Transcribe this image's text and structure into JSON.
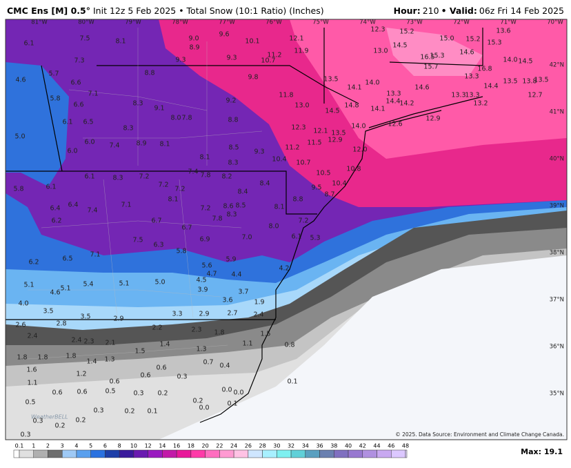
{
  "header": {
    "model": "CMC Ens [M] 0.5°",
    "title": "Init 12z 5 Feb 2025 • Total Snow (10:1 Ratio) (Inches)",
    "hour_label": "Hour:",
    "hour": "210",
    "valid_label": "• Valid:",
    "valid": "06z Fri 14 Feb 2025"
  },
  "map": {
    "lon_labels": [
      "81°W",
      "80°W",
      "79°W",
      "78°W",
      "77°W",
      "76°W",
      "75°W",
      "74°W",
      "73°W",
      "72°W",
      "71°W",
      "70°W"
    ],
    "lat_labels": [
      "42°N",
      "41°N",
      "40°N",
      "39°N",
      "38°N",
      "37°N",
      "36°N",
      "35°N"
    ],
    "points": [
      "6.1",
      "7.5",
      "8.1",
      "7.3",
      "4.6",
      "5.7",
      "6.6",
      "7.1",
      "5.8",
      "6.6",
      "6.5",
      "6.1",
      "5.0",
      "6.0",
      "6.0",
      "7.4",
      "8.3",
      "8.3",
      "9.1",
      "8.8",
      "9.0",
      "8.9",
      "9.6",
      "9.3",
      "9.3",
      "10.1",
      "11.2",
      "10.7",
      "12.1",
      "11.9",
      "9.8",
      "9.2",
      "8.0",
      "7.8",
      "8.8",
      "8.9",
      "8.1",
      "8.5",
      "9.3",
      "8.3",
      "8.1",
      "11.2",
      "10.4",
      "10.7",
      "11.8",
      "13.0",
      "12.3",
      "12.1",
      "13.5",
      "12.9",
      "11.5",
      "13.5",
      "14.1",
      "14.0",
      "14.5",
      "14.8",
      "14.1",
      "14.0",
      "12.0",
      "13.3",
      "12.3",
      "13.0",
      "14.5",
      "15.2",
      "15.0",
      "15.2",
      "13.6",
      "16.5",
      "15.3",
      "14.6",
      "15.3",
      "15.7",
      "13.3",
      "16.8",
      "14.0",
      "14.5",
      "13.5",
      "14.6",
      "14.4",
      "14.2",
      "13.3",
      "13.3",
      "14.4",
      "13.5",
      "13.8",
      "13.2",
      "12.7",
      "12.6",
      "12.9",
      "6.1",
      "8.3",
      "7.2",
      "7.4",
      "7.8",
      "8.2",
      "8.4",
      "8.4",
      "7.2",
      "7.2",
      "8.1",
      "7.2",
      "8.6",
      "8.5",
      "8.3",
      "7.8",
      "8.1",
      "8.8",
      "10.5",
      "9.5",
      "8.7",
      "10.4",
      "10.8",
      "5.8",
      "6.1",
      "6.4",
      "6.4",
      "7.4",
      "7.1",
      "6.2",
      "6.7",
      "6.7",
      "8.0",
      "7.2",
      "7.0",
      "6.9",
      "6.1",
      "5.3",
      "7.5",
      "6.3",
      "7.1",
      "6.5",
      "5.8",
      "5.6",
      "5.9",
      "6.2",
      "4.7",
      "4.5",
      "4.4",
      "4.2",
      "5.1",
      "5.1",
      "5.4",
      "5.1",
      "5.0",
      "3.9",
      "3.7",
      "4.6",
      "3.6",
      "4.0",
      "3.5",
      "3.5",
      "2.9",
      "3.3",
      "2.9",
      "2.7",
      "1.9",
      "2.4",
      "2.6",
      "2.8",
      "2.2",
      "2.3",
      "1.8",
      "2.4",
      "2.4",
      "2.3",
      "2.1",
      "1.4",
      "1.5",
      "1.3",
      "1.1",
      "1.5",
      "0.8",
      "1.8",
      "1.8",
      "1.8",
      "1.4",
      "1.3",
      "0.7",
      "0.4",
      "1.6",
      "1.2",
      "0.6",
      "0.6",
      "0.3",
      "0.6",
      "1.1",
      "0.6",
      "0.6",
      "0.5",
      "0.3",
      "0.2",
      "0.0",
      "0.0",
      "0.1",
      "0.5",
      "0.2",
      "0.0",
      "0.1",
      "0.3",
      "0.2",
      "0.1",
      "0.3",
      "0.2",
      "0.2",
      "0.3"
    ],
    "logo": "WeatherBELL",
    "credit": "© 2025. Data Source: Environment and Climate Change Canada."
  },
  "colorbar": {
    "ticks": [
      "0.1",
      "1",
      "2",
      "3",
      "4",
      "5",
      "6",
      "8",
      "10",
      "12",
      "14",
      "16",
      "18",
      "20",
      "22",
      "24",
      "26",
      "28",
      "30",
      "32",
      "34",
      "36",
      "38",
      "40",
      "42",
      "44",
      "46",
      "48"
    ],
    "max_label": "Max: 19.1"
  }
}
